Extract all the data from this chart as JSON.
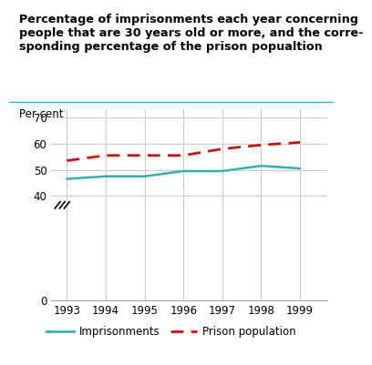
{
  "title_line1": "Percentage of imprisonments each year concerning",
  "title_line2": "people that are 30 years old or more, and the corre-",
  "title_line3": "sponding percentage of the prison popualtion",
  "ylabel": "Per cent",
  "years": [
    1993,
    1994,
    1995,
    1996,
    1997,
    1998,
    1999
  ],
  "imprisonments": [
    46.5,
    47.5,
    47.5,
    49.5,
    49.5,
    51.5,
    50.5
  ],
  "prison_population": [
    53.5,
    55.5,
    55.5,
    55.5,
    58.0,
    59.5,
    60.5
  ],
  "imprisonment_color": "#3aadad",
  "prison_color": "#cc1111",
  "title_line_color": "#3aadad",
  "yticks_shown": [
    0,
    40,
    50,
    60,
    70
  ],
  "ylim_top": 73,
  "xlim": [
    1992.6,
    1999.7
  ],
  "legend_imprisonment_label": "Imprisonments",
  "legend_prison_label": "Prison population",
  "bg_color": "#ffffff",
  "grid_color": "#cccccc",
  "bottom_bar_color": "#3aadad"
}
